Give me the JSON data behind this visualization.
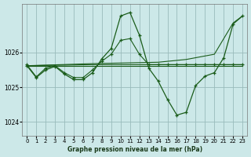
{
  "background_color": "#cce8e8",
  "grid_color": "#99bbbb",
  "line_color": "#1a5c1a",
  "xlabel": "Graphe pression niveau de la mer (hPa)",
  "xlim": [
    -0.5,
    23.5
  ],
  "ylim": [
    1023.6,
    1027.4
  ],
  "yticks": [
    1024,
    1025,
    1026
  ],
  "xticks": [
    0,
    1,
    2,
    3,
    4,
    5,
    6,
    7,
    8,
    9,
    10,
    11,
    12,
    13,
    14,
    15,
    16,
    17,
    18,
    19,
    20,
    21,
    22,
    23
  ],
  "series1_x": [
    0,
    1,
    2,
    3,
    4,
    5,
    6,
    7,
    8,
    9,
    10,
    11,
    12,
    13,
    14,
    15,
    16,
    17,
    18,
    19,
    20,
    21,
    22,
    23
  ],
  "series1_y": [
    1025.65,
    1025.3,
    1025.55,
    1025.62,
    1025.42,
    1025.28,
    1025.28,
    1025.5,
    1025.75,
    1025.95,
    1026.35,
    1026.4,
    1025.95,
    1025.65,
    1025.65,
    1025.65,
    1025.65,
    1025.65,
    1025.65,
    1025.65,
    1025.65,
    1025.65,
    1025.65,
    1025.65
  ],
  "series2_x": [
    0,
    1,
    2,
    3,
    4,
    5,
    6,
    7,
    8,
    9,
    10,
    11,
    12,
    13,
    14,
    15,
    16,
    17,
    18,
    19,
    20,
    21,
    22,
    23
  ],
  "series2_y": [
    1025.62,
    1025.28,
    1025.5,
    1025.6,
    1025.38,
    1025.22,
    1025.22,
    1025.42,
    1025.82,
    1026.12,
    1027.05,
    1027.15,
    1026.5,
    1025.55,
    1025.18,
    1024.65,
    1024.2,
    1024.28,
    1025.05,
    1025.32,
    1025.42,
    1025.85,
    1026.82,
    1027.05
  ],
  "series3_x": [
    0,
    23
  ],
  "series3_y": [
    1025.62,
    1025.62
  ],
  "series4_x": [
    0,
    7,
    14,
    17,
    20,
    22,
    23
  ],
  "series4_y": [
    1025.62,
    1025.68,
    1025.72,
    1025.8,
    1025.95,
    1026.85,
    1027.05
  ],
  "series5_x": [
    0,
    7,
    14,
    17,
    20,
    22,
    23
  ],
  "series5_y": [
    1025.62,
    1025.65,
    1025.65,
    1025.65,
    1025.65,
    1025.65,
    1025.65
  ]
}
